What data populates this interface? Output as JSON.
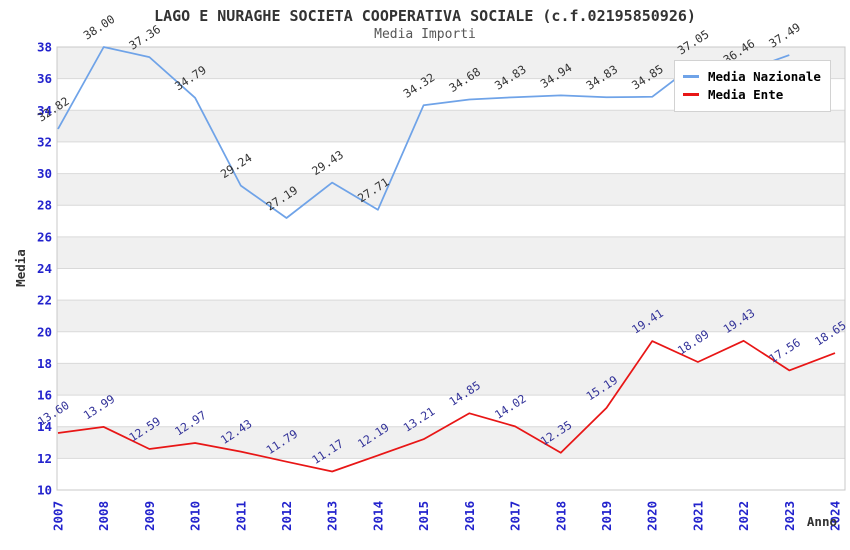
{
  "chart_data": {
    "type": "line",
    "title": "LAGO E NURAGHE SOCIETA COOPERATIVA SOCIALE (c.f.02195850926)",
    "subtitle": "Media Importi",
    "xlabel": "Anno",
    "ylabel": "Media",
    "x": [
      2007,
      2008,
      2009,
      2010,
      2011,
      2012,
      2013,
      2014,
      2015,
      2016,
      2017,
      2018,
      2019,
      2020,
      2021,
      2022,
      2023,
      2024
    ],
    "series": [
      {
        "name": "Media Nazionale",
        "color": "#6FA3E8",
        "label_color": "#333333",
        "values": [
          32.82,
          38.0,
          37.36,
          34.79,
          29.24,
          27.19,
          29.43,
          27.71,
          34.32,
          34.68,
          34.83,
          34.94,
          34.83,
          34.85,
          37.05,
          36.46,
          37.49,
          null
        ]
      },
      {
        "name": "Media Ente",
        "color": "#E81616",
        "label_color": "#333399",
        "values": [
          13.6,
          13.99,
          12.59,
          12.97,
          12.43,
          11.79,
          11.17,
          12.19,
          13.21,
          14.85,
          14.02,
          12.35,
          15.19,
          19.41,
          18.09,
          19.43,
          17.56,
          18.65
        ]
      }
    ],
    "ylim": [
      10,
      38
    ],
    "ytick_step": 2,
    "grid": "horizontal",
    "legend_position": "top-right",
    "colors": {
      "axis_tick": "#2323CD",
      "gridline": "#D9D9D9",
      "stripe": "#F0F0F0",
      "plot_border": "#C8C8C8",
      "title": "#333333",
      "subtitle": "#565656"
    }
  }
}
